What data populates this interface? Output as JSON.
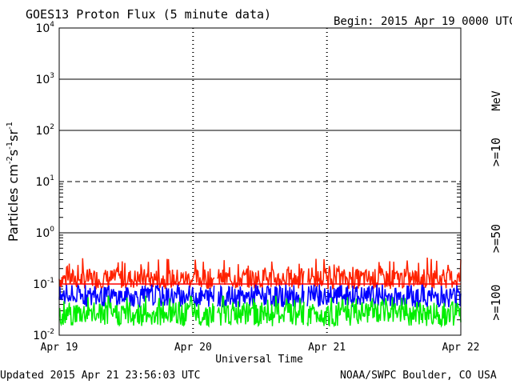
{
  "chart_data": {
    "type": "line",
    "title": "GOES13 Proton Flux (5 minute data)",
    "begin_label": "Begin: 2015 Apr 19 0000 UTC",
    "xlabel": "Universal Time",
    "ylabel_prefix": "Particles cm",
    "y_scale": "log",
    "ylim": [
      0.01,
      10000
    ],
    "y_ticks": [
      {
        "base": "10",
        "exp": "-2",
        "value": 0.01
      },
      {
        "base": "10",
        "exp": "-1",
        "value": 0.1
      },
      {
        "base": "10",
        "exp": "0",
        "value": 1
      },
      {
        "base": "10",
        "exp": "1",
        "value": 10
      },
      {
        "base": "10",
        "exp": "2",
        "value": 100
      },
      {
        "base": "10",
        "exp": "3",
        "value": 1000
      },
      {
        "base": "10",
        "exp": "4",
        "value": 10000
      }
    ],
    "x_ticks": [
      "Apr 19",
      "Apr 20",
      "Apr 21",
      "Apr 22"
    ],
    "xlim": [
      "2015-04-19",
      "2015-04-22"
    ],
    "threshold_lines": [
      {
        "value": 10,
        "style": "dashed"
      },
      {
        "value": 0.1,
        "style": "solid-red"
      }
    ],
    "units_label": "MeV",
    "series": [
      {
        "name": ">=10",
        "color": "#ff2200",
        "typical_range": [
          0.08,
          0.2
        ],
        "max": 0.33
      },
      {
        "name": ">=50",
        "color": "#0000ff",
        "typical_range": [
          0.035,
          0.09
        ],
        "max": 0.1
      },
      {
        "name": ">=100",
        "color": "#00ee00",
        "typical_range": [
          0.015,
          0.045
        ],
        "max": 0.06
      }
    ],
    "data_gaps": [
      0.39,
      0.615
    ]
  },
  "footer": {
    "updated": "Updated 2015 Apr 21 23:56:03 UTC",
    "source": "NOAA/SWPC Boulder, CO USA"
  }
}
